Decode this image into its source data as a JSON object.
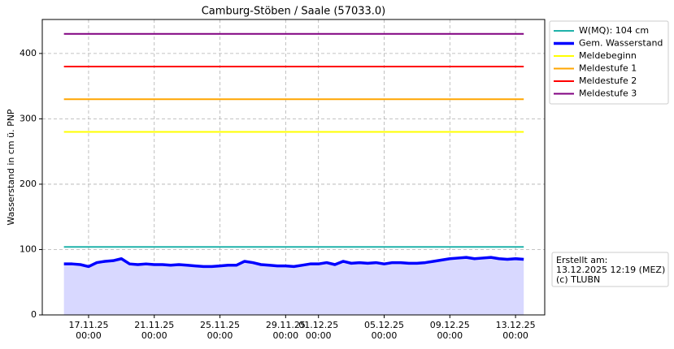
{
  "chart_data": {
    "type": "line",
    "title": "Camburg-Stöben / Saale (57033.0)",
    "y_label": "Wasserstand in cm ü. PNP",
    "xlim": [
      "14.11.25 04:20",
      "14.12.25 18:40"
    ],
    "ylim": [
      0,
      452
    ],
    "xticks": [
      "17.11.25 00:00",
      "21.11.25 00:00",
      "25.11.25 00:00",
      "29.11.25 00:00",
      "01.12.25 00:00",
      "05.12.25 00:00",
      "09.12.25 00:00",
      "13.12.25 00:00"
    ],
    "yticks": [
      0,
      100,
      200,
      300,
      400
    ],
    "grid": true,
    "legend": "outside upper right",
    "series": [
      {
        "name": "W(MQ): 104 cm",
        "color": "#20b2aa",
        "x": [
          "15.11.25 12:00",
          "13.12.25 12:00"
        ],
        "values": [
          104,
          104
        ]
      },
      {
        "name": "Gem. Wasserstand",
        "color": "#0000ff",
        "fill": "#d8d8ff",
        "x": [
          "15.11.25 12:00",
          "16.11.25 00:00",
          "16.11.25 12:00",
          "17.11.25 00:00",
          "17.11.25 12:00",
          "18.11.25 00:00",
          "18.11.25 12:00",
          "19.11.25 00:00",
          "19.11.25 12:00",
          "20.11.25 00:00",
          "20.11.25 12:00",
          "21.11.25 00:00",
          "21.11.25 12:00",
          "22.11.25 00:00",
          "22.11.25 12:00",
          "23.11.25 00:00",
          "23.11.25 12:00",
          "24.11.25 00:00",
          "24.11.25 12:00",
          "25.11.25 00:00",
          "25.11.25 12:00",
          "26.11.25 00:00",
          "26.11.25 12:00",
          "27.11.25 00:00",
          "27.11.25 12:00",
          "28.11.25 00:00",
          "28.11.25 12:00",
          "29.11.25 00:00",
          "29.11.25 12:00",
          "30.11.25 00:00",
          "30.11.25 12:00",
          "01.12.25 00:00",
          "01.12.25 12:00",
          "02.12.25 00:00",
          "02.12.25 12:00",
          "03.12.25 00:00",
          "03.12.25 12:00",
          "04.12.25 00:00",
          "04.12.25 12:00",
          "05.12.25 00:00",
          "05.12.25 12:00",
          "06.12.25 00:00",
          "06.12.25 12:00",
          "07.12.25 00:00",
          "07.12.25 12:00",
          "08.12.25 00:00",
          "08.12.25 12:00",
          "09.12.25 00:00",
          "09.12.25 12:00",
          "10.12.25 00:00",
          "10.12.25 12:00",
          "11.12.25 00:00",
          "11.12.25 12:00",
          "12.12.25 00:00",
          "12.12.25 12:00",
          "13.12.25 00:00",
          "13.12.25 12:00"
        ],
        "values": [
          78,
          78,
          77,
          74,
          80,
          82,
          83,
          86,
          78,
          77,
          78,
          77,
          77,
          76,
          77,
          76,
          75,
          74,
          74,
          75,
          76,
          76,
          82,
          80,
          77,
          76,
          75,
          75,
          74,
          76,
          78,
          78,
          80,
          77,
          82,
          79,
          80,
          79,
          80,
          78,
          80,
          80,
          79,
          79,
          80,
          82,
          84,
          86,
          87,
          88,
          86,
          87,
          88,
          86,
          85,
          86,
          85
        ]
      },
      {
        "name": "Meldebeginn",
        "color": "#ffff00",
        "x": [
          "15.11.25 12:00",
          "13.12.25 12:00"
        ],
        "values": [
          280,
          280
        ]
      },
      {
        "name": "Meldestufe 1",
        "color": "#ffa500",
        "x": [
          "15.11.25 12:00",
          "13.12.25 12:00"
        ],
        "values": [
          330,
          330
        ]
      },
      {
        "name": "Meldestufe 2",
        "color": "#ff0000",
        "x": [
          "15.11.25 12:00",
          "13.12.25 12:00"
        ],
        "values": [
          380,
          380
        ]
      },
      {
        "name": "Meldestufe 3",
        "color": "#800080",
        "x": [
          "15.11.25 12:00",
          "13.12.25 12:00"
        ],
        "values": [
          430,
          430
        ]
      }
    ],
    "annotation": [
      "Erstellt am:",
      "13.12.2025 12:19 (MEZ)",
      "(c) TLUBN"
    ]
  }
}
